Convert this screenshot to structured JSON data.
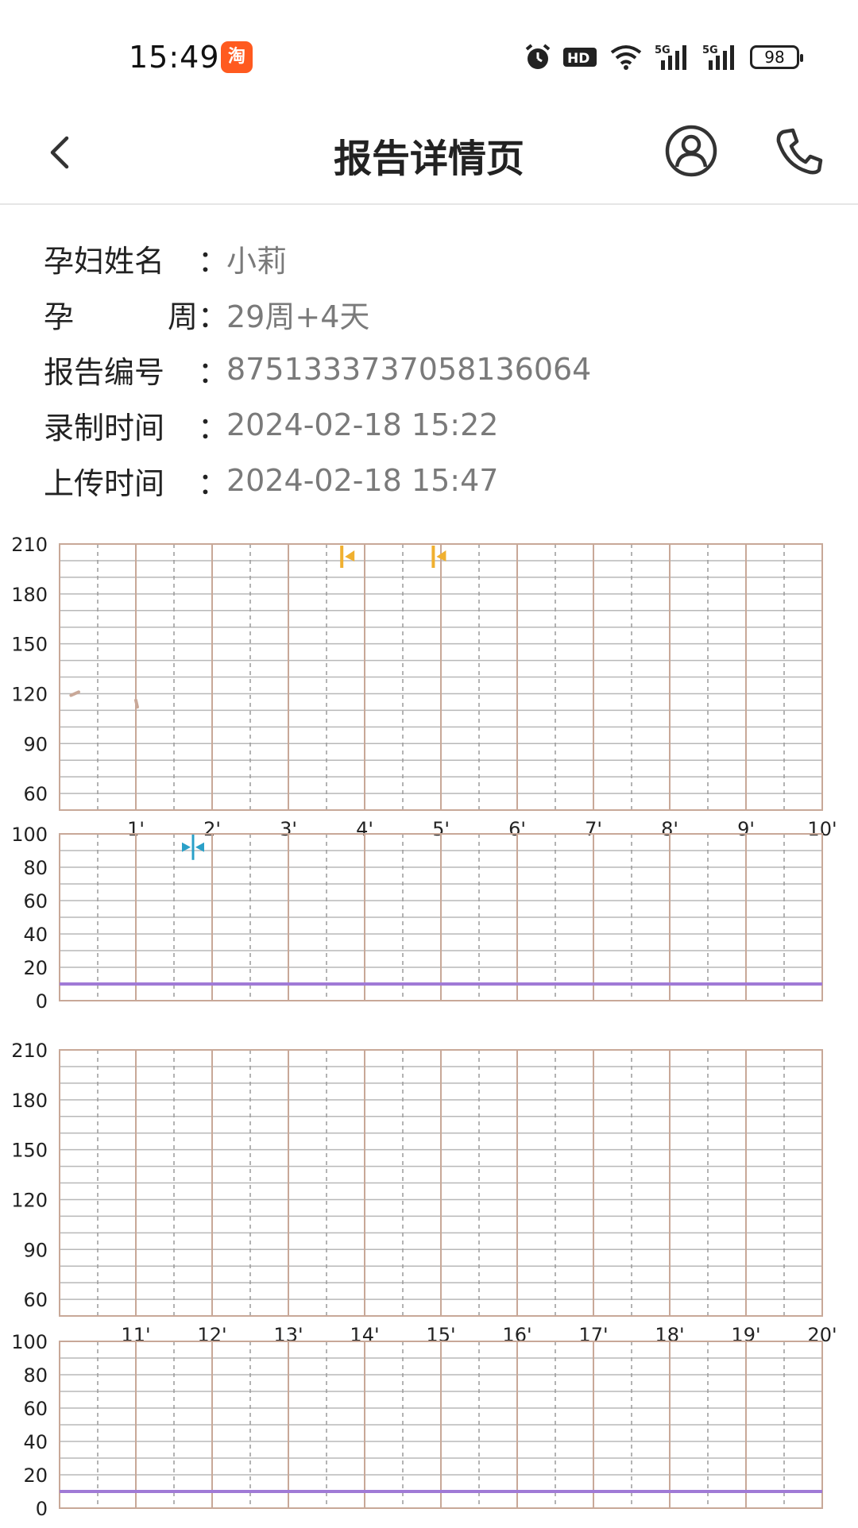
{
  "status_bar": {
    "time": "15:49",
    "app_icon": "taobao-app-icon",
    "battery": "98"
  },
  "navbar": {
    "back_icon": "chevron-left-icon",
    "title": "报告详情页",
    "user_icon": "user-circle-icon",
    "phone_icon": "phone-icon"
  },
  "info": {
    "name_label": "孕妇姓名",
    "name_value": "小莉",
    "week_label_1": "孕",
    "week_label_2": "周",
    "week_value": "29周+4天",
    "report_label": "报告编号",
    "report_value": "875133373705813606​4",
    "record_label": "录制时间",
    "record_value": "2024-02-18 15:22",
    "upload_label": "上传时间",
    "upload_value": "2024-02-18 15:47",
    "colon": "："
  },
  "chart_data": [
    {
      "type": "line",
      "title": "",
      "panel": "fetal-heart-rate",
      "x_tick_labels": [
        "1'",
        "2'",
        "3'",
        "4'",
        "5'",
        "6'",
        "7'",
        "8'",
        "9'",
        "10'"
      ],
      "y_tick_labels": [
        "210",
        "180",
        "150",
        "120",
        "90",
        "60"
      ],
      "ylim": [
        50,
        210
      ],
      "xlim_minutes": [
        0,
        10
      ],
      "series": [
        {
          "color": "#c9a898",
          "x": [
            0.15,
            0.25,
            1.0,
            1.02
          ],
          "y": [
            119,
            121,
            116,
            112
          ]
        }
      ],
      "markers": [
        {
          "type": "fetal-movement-flag",
          "x": 3.7,
          "color": "#f0b030"
        },
        {
          "type": "fetal-movement-flag",
          "x": 4.9,
          "color": "#f0b030"
        }
      ],
      "grid": true
    },
    {
      "type": "line",
      "title": "",
      "panel": "uterine-contraction",
      "y_tick_labels": [
        "100",
        "80",
        "60",
        "40",
        "20",
        "0"
      ],
      "ylim": [
        0,
        100
      ],
      "xlim_minutes": [
        0,
        10
      ],
      "series": [
        {
          "color": "#a07ad6",
          "x": [
            0,
            10
          ],
          "y": [
            10,
            10
          ]
        }
      ],
      "markers": [
        {
          "type": "toco-reset",
          "x": 1.75,
          "y": 92,
          "color": "#2aa0c8"
        }
      ],
      "grid": true
    },
    {
      "type": "line",
      "title": "",
      "panel": "fetal-heart-rate",
      "x_tick_labels": [
        "11'",
        "12'",
        "13'",
        "14'",
        "15'",
        "16'",
        "17'",
        "18'",
        "19'",
        "20'"
      ],
      "y_tick_labels": [
        "210",
        "180",
        "150",
        "120",
        "90",
        "60"
      ],
      "ylim": [
        50,
        210
      ],
      "xlim_minutes": [
        10,
        20
      ],
      "series": [],
      "grid": true
    },
    {
      "type": "line",
      "title": "",
      "panel": "uterine-contraction",
      "y_tick_labels": [
        "100",
        "80",
        "60",
        "40",
        "20",
        "0"
      ],
      "ylim": [
        0,
        100
      ],
      "xlim_minutes": [
        10,
        20
      ],
      "series": [
        {
          "color": "#a07ad6",
          "x": [
            10,
            20
          ],
          "y": [
            10,
            10
          ]
        }
      ],
      "grid": true
    }
  ],
  "colors": {
    "grid_major": "#c8a898",
    "grid_minor": "#9a9a9a",
    "grid_h": "#b8b8b8",
    "toco_line": "#a07ad6",
    "movement": "#f0b030",
    "toco_reset": "#2aa0c8"
  }
}
